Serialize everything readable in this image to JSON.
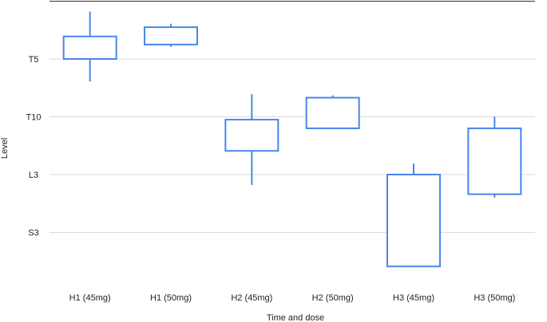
{
  "chart_data": {
    "type": "box",
    "xlabel": "Time and dose",
    "ylabel": "Level",
    "categories": [
      "H1 (45mg)",
      "H1 (50mg)",
      "H2 (45mg)",
      "H2 (50mg)",
      "H3 (45mg)",
      "H3 (50mg)"
    ],
    "y_ticks": [
      {
        "label": "T5",
        "value": 1
      },
      {
        "label": "T10",
        "value": 2
      },
      {
        "label": "L3",
        "value": 3
      },
      {
        "label": "S3",
        "value": 4
      }
    ],
    "y_axis_note": "ordinal vertebral levels; downward = lower level",
    "ylim": [
      0,
      5
    ],
    "boxes": [
      {
        "category": "H1 (45mg)",
        "whisker_top": 0.18,
        "q1": 0.61,
        "q3": 1.0,
        "whisker_bottom": 1.39
      },
      {
        "category": "H1 (50mg)",
        "whisker_top": 0.39,
        "q1": 0.45,
        "q3": 0.75,
        "whisker_bottom": 0.79
      },
      {
        "category": "H2 (45mg)",
        "whisker_top": 1.61,
        "q1": 2.05,
        "q3": 2.59,
        "whisker_bottom": 3.18
      },
      {
        "category": "H2 (50mg)",
        "whisker_top": 1.63,
        "q1": 1.67,
        "q3": 2.2,
        "whisker_bottom": 2.2
      },
      {
        "category": "H3 (45mg)",
        "whisker_top": 2.81,
        "q1": 3.0,
        "q3": 4.59,
        "whisker_bottom": 4.59
      },
      {
        "category": "H3 (50mg)",
        "whisker_top": 2.0,
        "q1": 2.2,
        "q3": 3.34,
        "whisker_bottom": 3.4
      }
    ],
    "gridlines": true,
    "box_color": "#4a86e8",
    "grid_color": "#d9d9d9",
    "axis_color": "#333333"
  }
}
